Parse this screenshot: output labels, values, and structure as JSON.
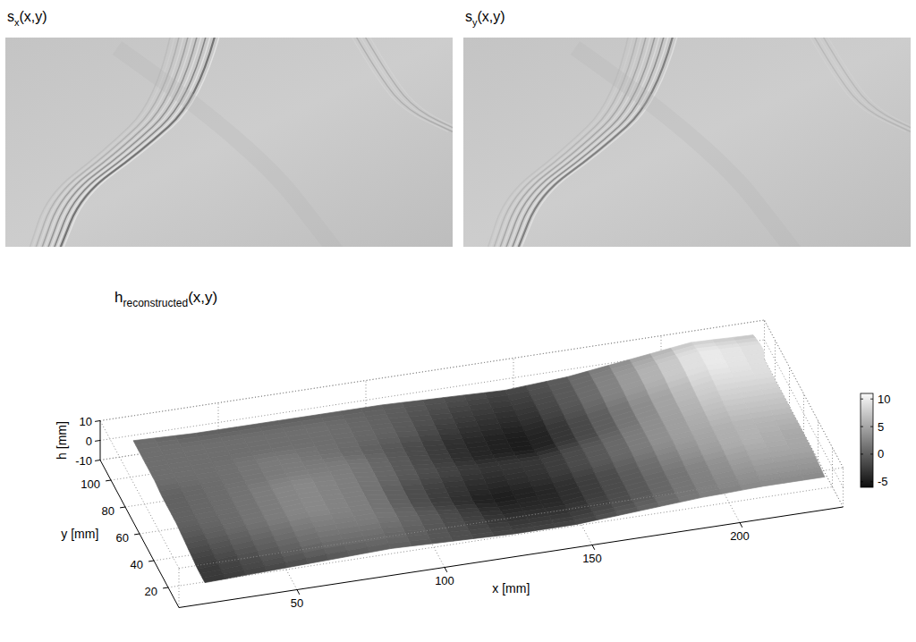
{
  "panels": [
    {
      "label": {
        "base": "s",
        "sub": "x",
        "args": "(x,y)"
      }
    },
    {
      "label": {
        "base": "s",
        "sub": "y",
        "args": "(x,y)"
      }
    }
  ],
  "chart_data": {
    "type": "surface",
    "title": {
      "base": "h",
      "sub": "reconstructed",
      "args": "(x,y)"
    },
    "x_label": "x [mm]",
    "y_label": "y [mm]",
    "z_label": "h [mm]",
    "x": [
      20,
      41,
      62,
      83,
      104,
      125,
      146,
      167,
      188,
      209,
      230
    ],
    "y": [
      10,
      20,
      30,
      40,
      50,
      60,
      70,
      80,
      90,
      100,
      110
    ],
    "z": [
      [
        -3,
        -2,
        -1,
        0,
        -1,
        -2,
        -2,
        0,
        2,
        3,
        3
      ],
      [
        -3,
        -1,
        1,
        1,
        -1,
        -3,
        -3,
        -1,
        2,
        4,
        4
      ],
      [
        -2,
        0,
        2,
        2,
        -1,
        -4,
        -4,
        -1,
        2,
        5,
        5
      ],
      [
        -1,
        1,
        3,
        2,
        -2,
        -5,
        -4,
        -1,
        3,
        6,
        5
      ],
      [
        0,
        1,
        3,
        2,
        -2,
        -4,
        -3,
        0,
        4,
        6,
        6
      ],
      [
        0,
        1,
        3,
        2,
        -1,
        -3,
        -3,
        0,
        4,
        7,
        7
      ],
      [
        0,
        1,
        2,
        2,
        -1,
        -4,
        -5,
        -1,
        4,
        8,
        8
      ],
      [
        1,
        1,
        2,
        1,
        -1,
        -4,
        -5,
        -1,
        4,
        9,
        9
      ],
      [
        1,
        1,
        1,
        1,
        0,
        -3,
        -4,
        0,
        5,
        10,
        9
      ],
      [
        1,
        1,
        1,
        1,
        0,
        -2,
        -3,
        0,
        5,
        10,
        9
      ],
      [
        1,
        0,
        0,
        0,
        0,
        -1,
        -2,
        0,
        4,
        8,
        7
      ]
    ],
    "xlim": [
      10,
      235
    ],
    "xticks": [
      50,
      100,
      150,
      200
    ],
    "ylim": [
      5,
      115
    ],
    "yticks": [
      20,
      40,
      60,
      80,
      100
    ],
    "zlim": [
      -10,
      10
    ],
    "zticks": [
      -10,
      0,
      10
    ],
    "colorbar": {
      "range": [
        -6,
        11
      ],
      "ticks": [
        -5,
        0,
        5,
        10
      ]
    },
    "color": "gray",
    "grid": true
  }
}
